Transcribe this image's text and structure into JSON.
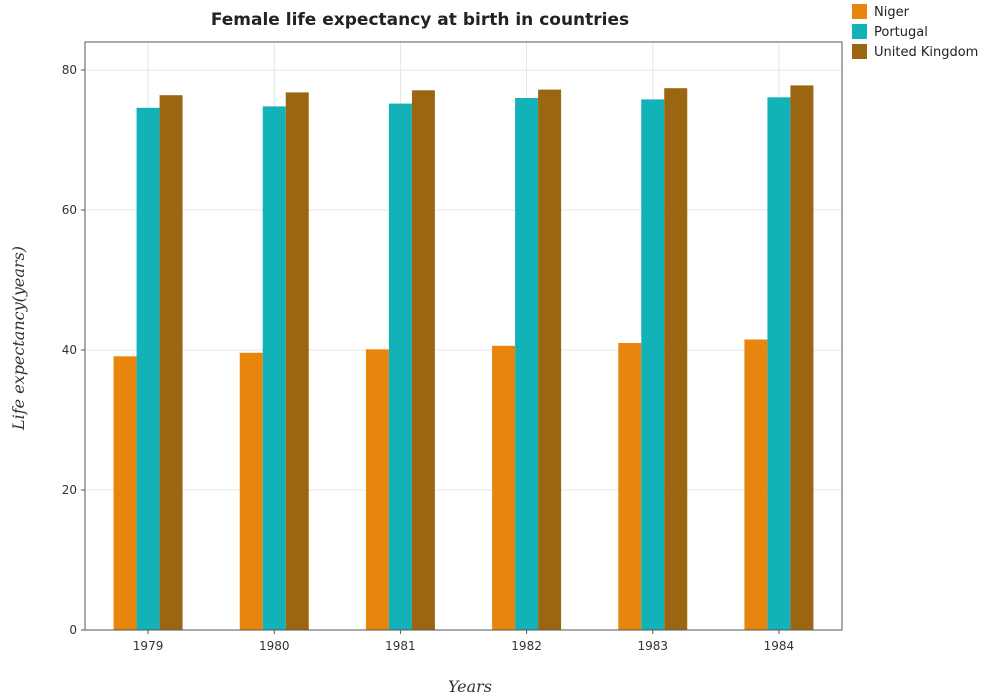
{
  "chart_data": {
    "type": "bar",
    "title": "Female life expectancy at birth in countries",
    "xlabel": "Years",
    "ylabel": "Life expectancy(years)",
    "ylim": [
      0,
      84
    ],
    "yticks": [
      0,
      20,
      40,
      60,
      80
    ],
    "grid": true,
    "legend": "top-right",
    "categories": [
      "1979",
      "1980",
      "1981",
      "1982",
      "1983",
      "1984"
    ],
    "series": [
      {
        "name": "Niger",
        "color": "#e8850c",
        "values": [
          39.1,
          39.6,
          40.1,
          40.6,
          41.0,
          41.5
        ]
      },
      {
        "name": "Portugal",
        "color": "#13b1b8",
        "values": [
          74.6,
          74.8,
          75.2,
          76.0,
          75.8,
          76.1
        ]
      },
      {
        "name": "United Kingdom",
        "color": "#9b6512",
        "values": [
          76.4,
          76.8,
          77.1,
          77.2,
          77.4,
          77.8
        ]
      }
    ]
  }
}
